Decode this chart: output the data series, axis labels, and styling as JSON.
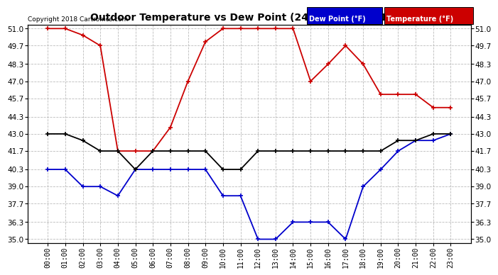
{
  "title": "Outdoor Temperature vs Dew Point (24 Hours) 20181029",
  "copyright": "Copyright 2018 Cartronics.com",
  "hours": [
    "00:00",
    "01:00",
    "02:00",
    "03:00",
    "04:00",
    "05:00",
    "06:00",
    "07:00",
    "08:00",
    "09:00",
    "10:00",
    "11:00",
    "12:00",
    "13:00",
    "14:00",
    "15:00",
    "16:00",
    "17:00",
    "18:00",
    "19:00",
    "20:00",
    "21:00",
    "22:00",
    "23:00"
  ],
  "temperature": [
    51.0,
    51.0,
    50.5,
    49.7,
    41.7,
    41.7,
    41.7,
    43.5,
    47.0,
    50.0,
    51.0,
    51.0,
    51.0,
    51.0,
    51.0,
    47.0,
    48.3,
    49.7,
    48.3,
    46.0,
    46.0,
    46.0,
    45.0,
    45.0
  ],
  "dew_point": [
    40.3,
    40.3,
    39.0,
    39.0,
    38.3,
    40.3,
    40.3,
    40.3,
    40.3,
    40.3,
    38.3,
    38.3,
    35.0,
    35.0,
    36.3,
    36.3,
    36.3,
    35.0,
    39.0,
    40.3,
    41.7,
    42.5,
    42.5,
    43.0
  ],
  "outdoor_temp": [
    43.0,
    43.0,
    42.5,
    41.7,
    41.7,
    40.3,
    41.7,
    41.7,
    41.7,
    41.7,
    40.3,
    40.3,
    41.7,
    41.7,
    41.7,
    41.7,
    41.7,
    41.7,
    41.7,
    41.7,
    42.5,
    42.5,
    43.0,
    43.0
  ],
  "temp_color": "#cc0000",
  "dew_color": "#0000cc",
  "outdoor_color": "#000000",
  "ylim_min": 35.0,
  "ylim_max": 51.0,
  "yticks": [
    35.0,
    36.3,
    37.7,
    39.0,
    40.3,
    41.7,
    43.0,
    44.3,
    45.7,
    47.0,
    48.3,
    49.7,
    51.0
  ],
  "bg_color": "#ffffff",
  "grid_color": "#bbbbbb",
  "legend_dew_bg": "#0000cc",
  "legend_temp_bg": "#cc0000",
  "legend_dew_text": "Dew Point (°F)",
  "legend_temp_text": "Temperature (°F)"
}
